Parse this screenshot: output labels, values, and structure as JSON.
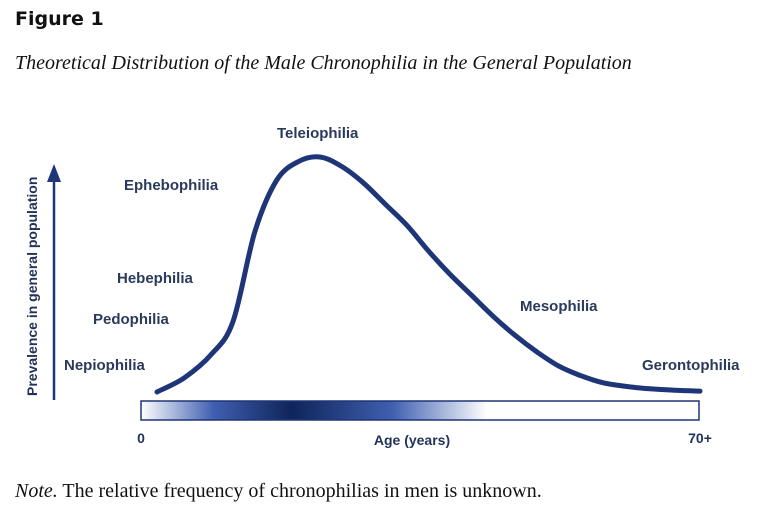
{
  "figure": {
    "label": "Figure 1",
    "title": "Theoretical Distribution of the Male Chronophilia in the General Population",
    "note_prefix": "Note.",
    "note_text": " The relative frequency of chronophilias in men is unknown."
  },
  "colors": {
    "curve": "#1e3577",
    "bar_dark": "#0f2459",
    "bar_mid": "#3f5fb0",
    "bar_light": "#ffffff",
    "text": "#22335a"
  },
  "chart_data": {
    "type": "line",
    "title": "",
    "xlabel": "Age (years)",
    "ylabel": "Prevalence in general population",
    "x_ticks": [
      "0",
      "70+"
    ],
    "y_ticks": [],
    "grid": false,
    "legend": "none",
    "annotations": [
      "Nepiophilia",
      "Pedophilia",
      "Hebephilia",
      "Ephebophilia",
      "Teleiophilia",
      "Mesophilia",
      "Gerontophilia"
    ],
    "series": [
      {
        "x": [
          0.0,
          0.05,
          0.1,
          0.14,
          0.18,
          0.22,
          0.26,
          0.3,
          0.34,
          0.38,
          0.42,
          0.46,
          0.5,
          0.54,
          0.58,
          0.62,
          0.66,
          0.7,
          0.74,
          0.78,
          0.82,
          0.86,
          0.9,
          0.95,
          1.0
        ],
        "y": [
          0.0,
          0.06,
          0.16,
          0.3,
          0.68,
          0.9,
          0.98,
          1.0,
          0.96,
          0.89,
          0.8,
          0.71,
          0.6,
          0.5,
          0.41,
          0.32,
          0.24,
          0.17,
          0.11,
          0.07,
          0.04,
          0.025,
          0.015,
          0.008,
          0.004
        ]
      }
    ]
  }
}
